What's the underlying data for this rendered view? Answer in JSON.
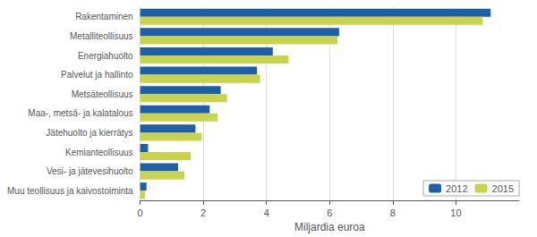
{
  "chart_data": {
    "type": "bar",
    "orientation": "horizontal",
    "categories": [
      "Muu teollisuus ja kaivostoiminta",
      "Vesi- ja jätevesihuolto",
      "Kemianteollisuus",
      "Jätehuolto ja kierrätys",
      "Maa-, metsä- ja kalatalous",
      "Metsäteollisuus",
      "Palvelut ja hallinto",
      "Energiahuolto",
      "Metalliteollisuus",
      "Rakentaminen"
    ],
    "series": [
      {
        "name": "2012",
        "color": "#1f5fa6",
        "values": [
          0.2,
          1.2,
          0.25,
          1.75,
          2.2,
          2.55,
          3.7,
          4.2,
          6.3,
          11.1
        ]
      },
      {
        "name": "2015",
        "color": "#c8d44e",
        "values": [
          0.15,
          1.4,
          1.6,
          1.95,
          2.45,
          2.75,
          3.8,
          4.7,
          6.25,
          10.85
        ]
      }
    ],
    "xlabel": "Miljardia euroa",
    "xlim": [
      0,
      12
    ],
    "xticks": [
      0,
      2,
      4,
      6,
      8,
      10
    ],
    "grid": true,
    "legend": "lower right"
  }
}
